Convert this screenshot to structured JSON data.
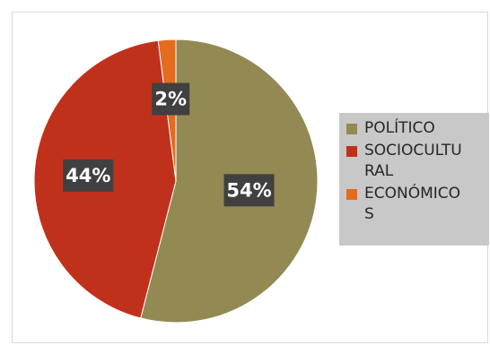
{
  "chart_data": {
    "type": "pie",
    "title": "",
    "start_angle_deg": 0,
    "direction": "clockwise",
    "categories": [
      "POLÍTICO",
      "SOCIOCULTURAL",
      "ECONÓMICOS"
    ],
    "values": [
      54,
      44,
      2
    ],
    "data_labels": [
      "54%",
      "44%",
      "2%"
    ],
    "legend_labels": [
      "POLÍTICO",
      "SOCIOCULTU RAL",
      "ECONÓMICO S"
    ],
    "colors": [
      "#938953",
      "#c0311c",
      "#e36c1f"
    ],
    "legend_position": "right"
  }
}
